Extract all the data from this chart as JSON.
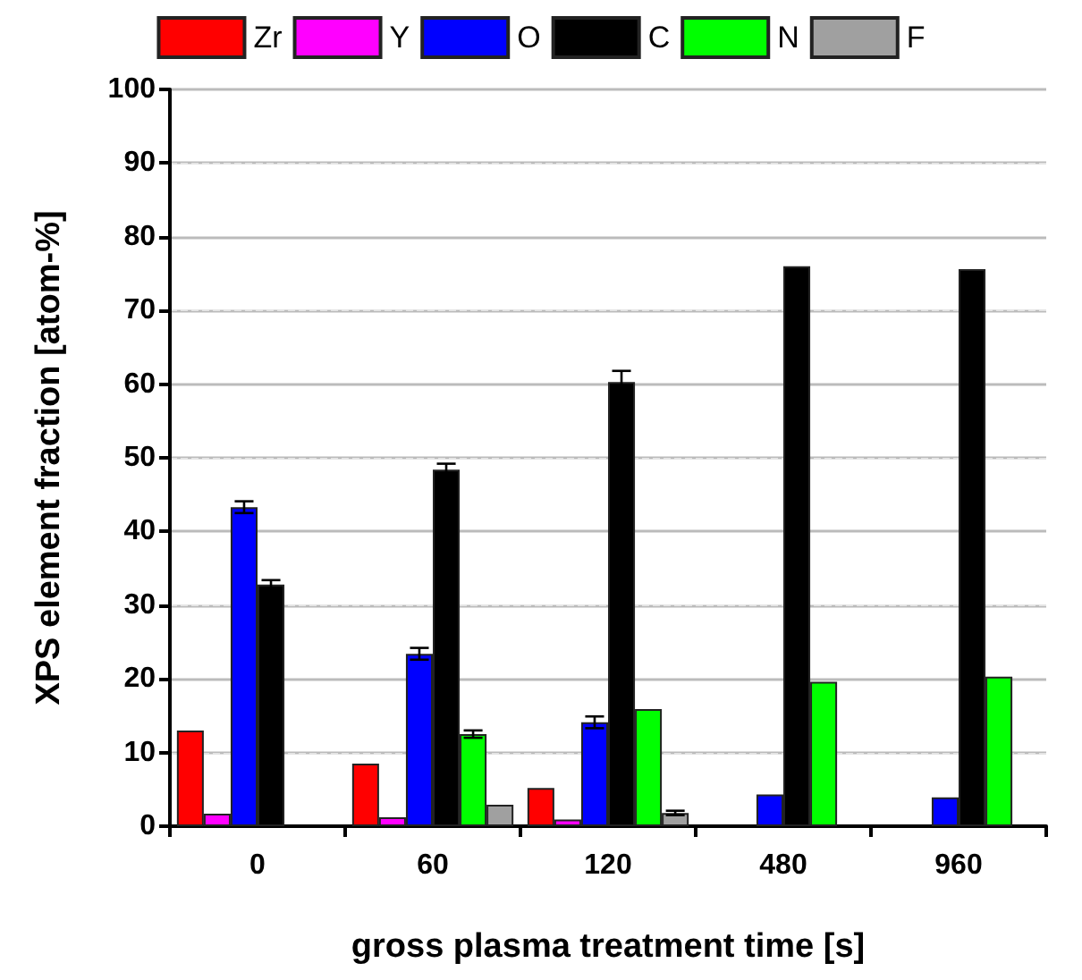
{
  "chart_data": {
    "type": "bar",
    "xlabel": "gross plasma treatment time [s]",
    "ylabel": "XPS element fraction [atom-%]",
    "categories": [
      "0",
      "60",
      "120",
      "480",
      "960"
    ],
    "series": [
      {
        "name": "Zr",
        "color": "#ff0000",
        "values": [
          13,
          8.5,
          5.2,
          null,
          null
        ]
      },
      {
        "name": "Y",
        "color": "#ff00ff",
        "values": [
          1.7,
          1.2,
          0.9,
          null,
          null
        ]
      },
      {
        "name": "O",
        "color": "#0000ff",
        "values": [
          43.3,
          23.4,
          14.1,
          4.3,
          3.9
        ],
        "errors": [
          0.8,
          0.8,
          0.8,
          null,
          null
        ]
      },
      {
        "name": "C",
        "color": "#000000",
        "values": [
          32.8,
          48.4,
          60.3,
          76,
          75.6
        ],
        "errors": [
          0.6,
          0.8,
          1.5,
          null,
          null
        ]
      },
      {
        "name": "N",
        "color": "#00ff00",
        "values": [
          null,
          12.5,
          15.9,
          19.6,
          20.3
        ],
        "errors": [
          null,
          0.5,
          null,
          null,
          null
        ]
      },
      {
        "name": "F",
        "color": "#a0a0a0",
        "values": [
          null,
          2.9,
          1.8,
          null,
          null
        ],
        "errors": [
          null,
          null,
          0.3,
          null,
          null
        ]
      }
    ],
    "ylim": [
      0,
      100
    ],
    "yticks": [
      0,
      10,
      20,
      30,
      40,
      50,
      60,
      70,
      80,
      90,
      100
    ],
    "grid": "y",
    "legend": "top"
  }
}
